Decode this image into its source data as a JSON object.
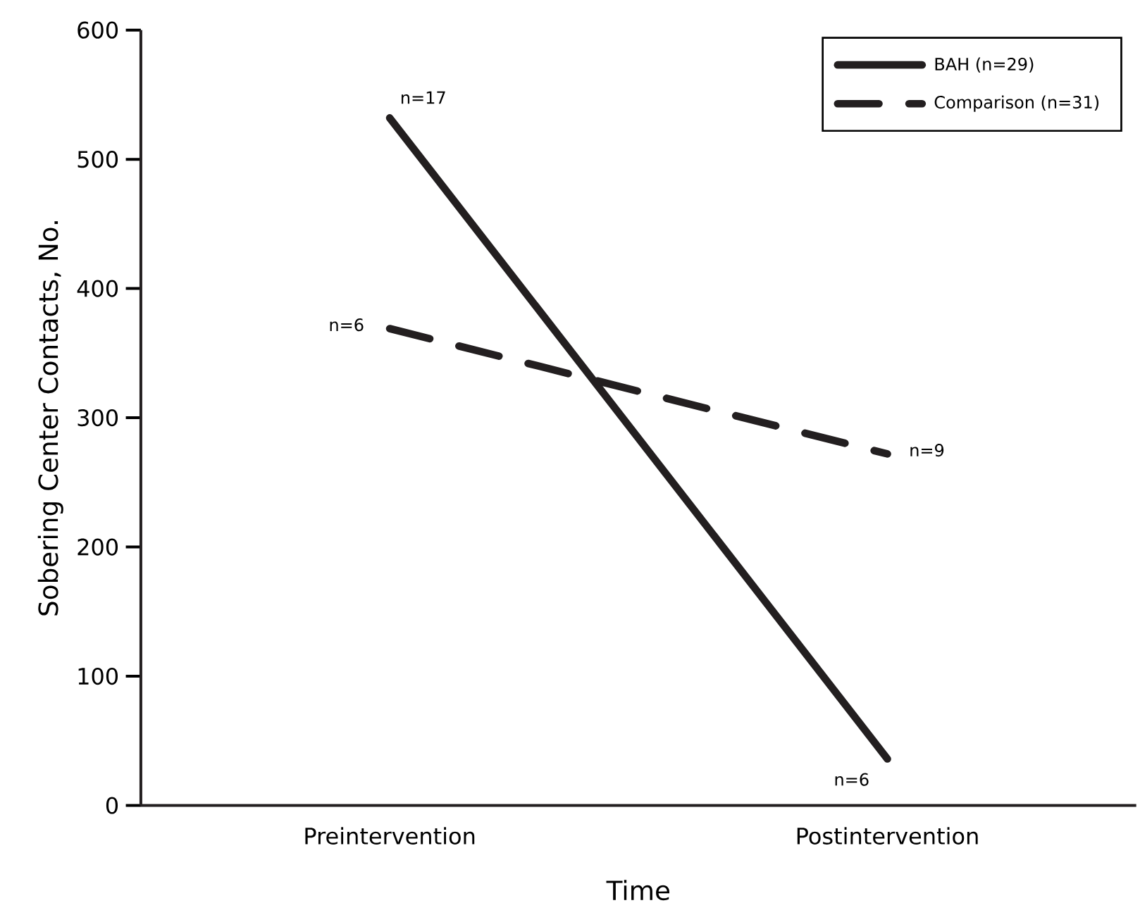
{
  "chart_data": {
    "type": "line",
    "xlabel": "Time",
    "ylabel": "Sobering Center Contacts, No.",
    "categories": [
      "Preintervention",
      "Postintervention"
    ],
    "series": [
      {
        "name": "BAH (n=29)",
        "color": "#231f20",
        "values": [
          532,
          36
        ],
        "line_style": "solid"
      },
      {
        "name": "Comparison (n=31)",
        "color": "#231f20",
        "values": [
          369,
          272
        ],
        "line_style": "dashed"
      }
    ],
    "ylim": [
      0,
      600
    ],
    "yticks": [
      0,
      100,
      200,
      300,
      400,
      500,
      600
    ],
    "legend": "top right",
    "marker": "none",
    "grid": false,
    "annotations": [
      {
        "text": "n=17",
        "x": "Preintervention",
        "y": 532
      },
      {
        "text": "n=6",
        "x": "Preintervention",
        "y": 369
      },
      {
        "text": "n=9",
        "x": "Postintervention",
        "y": 272
      },
      {
        "text": "n=6",
        "x": "Postintervention",
        "y": 36
      }
    ]
  }
}
